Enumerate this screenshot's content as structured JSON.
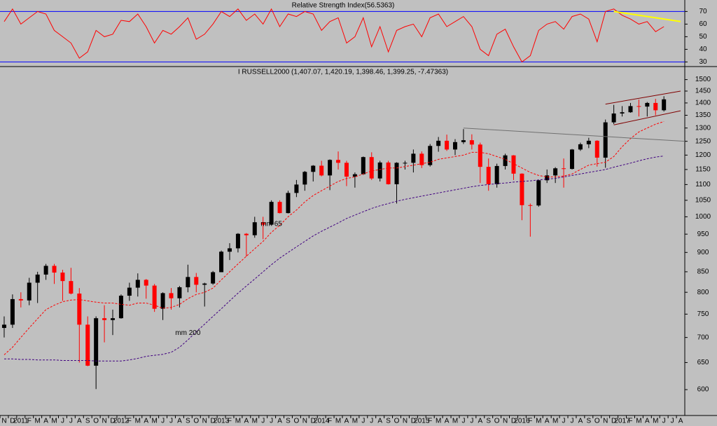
{
  "chart_data": [
    {
      "type": "line",
      "title": "Relative Strength Index(56.5363)",
      "series": [
        {
          "color": "#ff0000",
          "values": [
            62,
            72,
            60,
            65,
            70,
            68,
            55,
            50,
            45,
            33,
            38,
            55,
            50,
            52,
            63,
            62,
            68,
            58,
            45,
            55,
            52,
            58,
            65,
            48,
            52,
            60,
            70,
            66,
            72,
            63,
            68,
            60,
            72,
            58,
            68,
            66,
            70,
            68,
            55,
            62,
            65,
            45,
            50,
            65,
            42,
            58,
            38,
            55,
            58,
            60,
            50,
            65,
            68,
            58,
            62,
            66,
            58,
            40,
            35,
            52,
            56,
            42,
            30,
            35,
            55,
            60,
            62,
            56,
            66,
            68,
            64,
            46,
            70,
            72,
            67,
            64,
            60,
            62,
            54,
            58,
            null,
            null
          ]
        }
      ],
      "ylim": [
        28,
        78
      ],
      "yticks": [
        30,
        40,
        50,
        60,
        70
      ],
      "reference_lines": [
        70,
        30
      ],
      "reference_color": "#0000ff",
      "trendlines": [
        {
          "start": [
            73,
            70
          ],
          "end": [
            81,
            62
          ],
          "color": "#ffff00"
        }
      ]
    },
    {
      "type": "candlestick",
      "title": "I RUSSELL2000 (1,407.07, 1,420.19, 1,398.46, 1,399.25, -7.47363)",
      "categories": [
        "N",
        "D",
        "2011",
        "F",
        "M",
        "A",
        "M",
        "J",
        "J",
        "A",
        "S",
        "O",
        "N",
        "D",
        "2012",
        "F",
        "M",
        "A",
        "M",
        "J",
        "J",
        "A",
        "S",
        "O",
        "N",
        "D",
        "2013",
        "F",
        "M",
        "A",
        "M",
        "J",
        "J",
        "A",
        "S",
        "O",
        "N",
        "D",
        "2014",
        "F",
        "M",
        "A",
        "M",
        "J",
        "J",
        "A",
        "S",
        "O",
        "N",
        "D",
        "2015",
        "F",
        "M",
        "A",
        "M",
        "J",
        "J",
        "A",
        "S",
        "O",
        "N",
        "D",
        "2016",
        "F",
        "M",
        "A",
        "M",
        "J",
        "J",
        "A",
        "S",
        "O",
        "N",
        "D",
        "2017",
        "F",
        "M",
        "A",
        "M",
        "J",
        "J",
        "A"
      ],
      "open": [
        720,
        727,
        784,
        781,
        823,
        843,
        865,
        848,
        827,
        797,
        727,
        644,
        741,
        737,
        741,
        792,
        811,
        830,
        816,
        762,
        798,
        786,
        812,
        837,
        818,
        821,
        849,
        902,
        911,
        951,
        947,
        984,
        977,
        1045,
        1011,
        1073,
        1100,
        1142,
        1163,
        1130,
        1183,
        1173,
        1126,
        1134,
        1193,
        1120,
        1174,
        1101,
        1173,
        1173,
        1205,
        1165,
        1233,
        1252,
        1220,
        1247,
        1254,
        1238,
        1159,
        1101,
        1162,
        1199,
        1136,
        1035,
        1034,
        1114,
        1130,
        1154,
        1152,
        1220,
        1239,
        1252,
        1191,
        1322,
        1357,
        1362,
        1387,
        1385,
        1400,
        1370,
        null,
        null
      ],
      "high": [
        745,
        795,
        800,
        835,
        850,
        870,
        870,
        855,
        860,
        810,
        745,
        745,
        770,
        760,
        795,
        823,
        846,
        832,
        820,
        800,
        810,
        815,
        868,
        847,
        823,
        852,
        905,
        925,
        953,
        953,
        1000,
        1000,
        1050,
        1050,
        1080,
        1115,
        1145,
        1165,
        1180,
        1185,
        1213,
        1180,
        1140,
        1195,
        1210,
        1180,
        1180,
        1175,
        1180,
        1220,
        1213,
        1240,
        1266,
        1275,
        1258,
        1296,
        1276,
        1245,
        1188,
        1170,
        1205,
        1200,
        1137,
        1040,
        1115,
        1150,
        1158,
        1188,
        1222,
        1245,
        1263,
        1254,
        1333,
        1392,
        1387,
        1400,
        1414,
        1404,
        1417,
        1428,
        null,
        null
      ],
      "low": [
        700,
        720,
        765,
        770,
        775,
        830,
        820,
        780,
        795,
        650,
        643,
        601,
        690,
        705,
        740,
        780,
        790,
        785,
        755,
        737,
        760,
        765,
        800,
        800,
        767,
        818,
        849,
        880,
        900,
        889,
        940,
        936,
        975,
        1010,
        1010,
        1060,
        1080,
        1110,
        1127,
        1082,
        1150,
        1095,
        1090,
        1132,
        1115,
        1110,
        1100,
        1040,
        1150,
        1140,
        1155,
        1160,
        1212,
        1215,
        1200,
        1240,
        1220,
        1105,
        1080,
        1090,
        1150,
        1115,
        990,
        943,
        1030,
        1105,
        1105,
        1090,
        1150,
        1215,
        1225,
        1160,
        1156,
        1315,
        1345,
        1360,
        1345,
        1345,
        1350,
        1365,
        null,
        null
      ],
      "close": [
        727,
        784,
        781,
        823,
        843,
        865,
        848,
        827,
        797,
        727,
        644,
        741,
        737,
        741,
        792,
        811,
        830,
        816,
        762,
        798,
        786,
        812,
        837,
        818,
        821,
        849,
        902,
        911,
        951,
        947,
        984,
        977,
        1045,
        1011,
        1073,
        1100,
        1142,
        1163,
        1130,
        1183,
        1173,
        1126,
        1134,
        1193,
        1120,
        1174,
        1101,
        1173,
        1173,
        1205,
        1165,
        1233,
        1252,
        1220,
        1247,
        1254,
        1238,
        1159,
        1101,
        1162,
        1199,
        1136,
        1035,
        1034,
        1114,
        1130,
        1154,
        1152,
        1220,
        1239,
        1252,
        1191,
        1322,
        1357,
        1362,
        1387,
        1385,
        1400,
        1370,
        1415,
        null,
        null
      ],
      "up_color": "#000000",
      "down_color": "#ff0000",
      "series": [
        {
          "name": "mm 65",
          "color": "#ff0000",
          "values": [
            665,
            680,
            700,
            720,
            740,
            760,
            770,
            778,
            782,
            783,
            780,
            777,
            775,
            775,
            772,
            770,
            775,
            775,
            770,
            763,
            765,
            772,
            785,
            795,
            800,
            810,
            830,
            850,
            870,
            890,
            910,
            930,
            955,
            975,
            1000,
            1020,
            1045,
            1065,
            1080,
            1095,
            1110,
            1120,
            1125,
            1135,
            1145,
            1150,
            1155,
            1155,
            1160,
            1165,
            1170,
            1175,
            1185,
            1190,
            1195,
            1200,
            1210,
            1210,
            1205,
            1195,
            1185,
            1170,
            1155,
            1140,
            1130,
            1125,
            1125,
            1128,
            1135,
            1150,
            1165,
            1170,
            1175,
            1195,
            1230,
            1260,
            1285,
            1300,
            1315,
            1325,
            null,
            null
          ]
        },
        {
          "name": "mm 200",
          "color": "#400080",
          "values": [
            657,
            657,
            656,
            656,
            655,
            655,
            655,
            654,
            654,
            654,
            654,
            653,
            653,
            653,
            653,
            655,
            658,
            662,
            664,
            666,
            670,
            680,
            695,
            712,
            728,
            745,
            762,
            780,
            798,
            815,
            832,
            850,
            868,
            885,
            900,
            915,
            930,
            945,
            958,
            970,
            982,
            995,
            1005,
            1015,
            1025,
            1033,
            1040,
            1047,
            1053,
            1058,
            1063,
            1068,
            1073,
            1078,
            1083,
            1088,
            1093,
            1097,
            1100,
            1103,
            1105,
            1108,
            1110,
            1112,
            1115,
            1118,
            1120,
            1125,
            1130,
            1135,
            1140,
            1145,
            1150,
            1158,
            1165,
            1172,
            1180,
            1187,
            1193,
            1197,
            null,
            null
          ]
        }
      ],
      "ylim": [
        557,
        1505
      ],
      "log": true,
      "yticks": [
        600,
        650,
        700,
        750,
        800,
        850,
        900,
        950,
        1000,
        1050,
        1100,
        1150,
        1200,
        1250,
        1300,
        1350,
        1400,
        1450,
        1500
      ],
      "trendlines": [
        {
          "start": [
            55,
            1300
          ],
          "end": [
            82,
            1250
          ],
          "color": "#707070"
        },
        {
          "start": [
            72,
            1395
          ],
          "end": [
            81,
            1450
          ],
          "color": "#800000"
        },
        {
          "start": [
            73,
            1312
          ],
          "end": [
            81,
            1368
          ],
          "color": "#800000"
        }
      ]
    }
  ]
}
